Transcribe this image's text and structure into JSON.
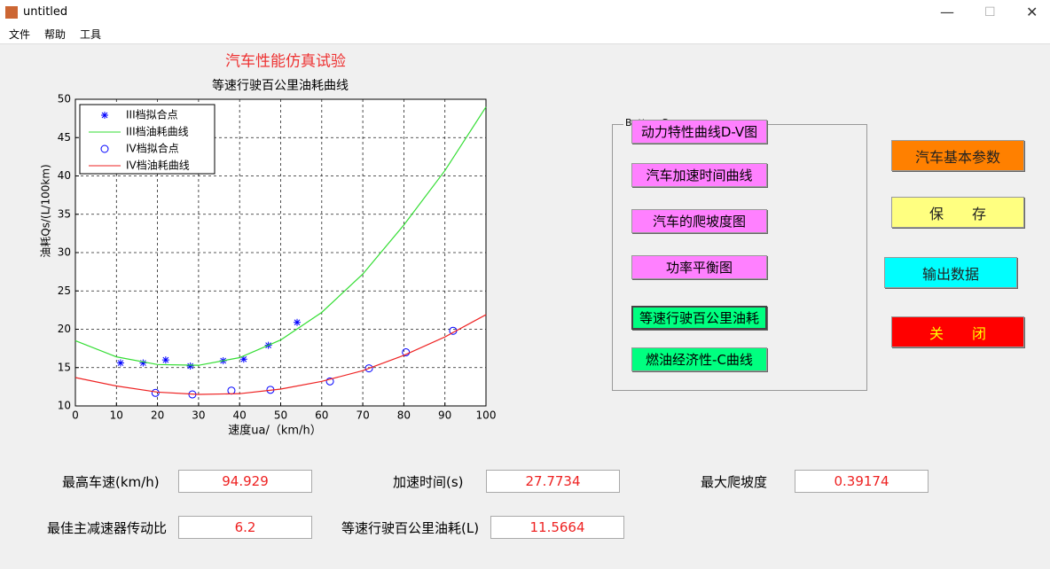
{
  "window": {
    "title": "untitled",
    "menu": [
      "文件",
      "帮助",
      "工具"
    ]
  },
  "heading": "汽车性能仿真试验",
  "chart_data": {
    "type": "line",
    "title": "等速行驶百公里油耗曲线",
    "x_label": "速度ua/（km/h）",
    "y_label": "油耗Qs/(L/100km)",
    "xlim": [
      0,
      100
    ],
    "xticks": [
      0,
      10,
      20,
      30,
      40,
      50,
      60,
      70,
      80,
      90,
      100
    ],
    "ylim": [
      10,
      50
    ],
    "yticks": [
      10,
      15,
      20,
      25,
      30,
      35,
      40,
      45,
      50
    ],
    "grid": true,
    "legend": "upper-left",
    "series": [
      {
        "name": "III档拟合点",
        "color": "#0000ff",
        "marker": "*",
        "x": [
          11,
          16.5,
          22,
          28,
          36,
          41,
          47,
          54
        ],
        "values": [
          15.6,
          15.6,
          16,
          15.2,
          15.9,
          16.1,
          17.9,
          20.9
        ]
      },
      {
        "name": "III档油耗曲线",
        "color": "#33dd33",
        "marker": "none",
        "x": [
          0,
          10,
          20,
          30,
          40,
          50,
          60,
          70,
          80,
          90,
          100
        ],
        "values": [
          18.5,
          16.4,
          15.4,
          15.3,
          16.3,
          18.6,
          22.2,
          27.2,
          33.6,
          40.7,
          49
        ]
      },
      {
        "name": "IV档拟合点",
        "color": "#0000ff",
        "marker": "o",
        "x": [
          19.5,
          28.5,
          38,
          47.5,
          62,
          71.5,
          80.5,
          92
        ],
        "values": [
          11.7,
          11.5,
          12,
          12.1,
          13.2,
          14.9,
          17,
          19.8
        ]
      },
      {
        "name": "IV档油耗曲线",
        "color": "#ee2222",
        "marker": "none",
        "x": [
          0,
          10,
          20,
          30,
          40,
          50,
          60,
          70,
          80,
          90,
          100
        ],
        "values": [
          13.7,
          12.6,
          11.8,
          11.5,
          11.6,
          12.2,
          13.2,
          14.6,
          16.6,
          19,
          21.9
        ]
      }
    ]
  },
  "button_group": {
    "label": "Button Group",
    "buttons": [
      "动力特性曲线D-V图",
      "汽车加速时间曲线",
      "汽车的爬坡度图",
      "功率平衡图",
      "等速行驶百公里油耗",
      "燃油经济性-C曲线"
    ]
  },
  "side_buttons": [
    "汽车基本参数",
    "保存",
    "输出数据",
    "关闭"
  ],
  "fields": [
    {
      "label": "最高车速(km/h)",
      "value": "94.929"
    },
    {
      "label": "加速时间(s)",
      "value": "27.7734"
    },
    {
      "label": "最大爬坡度",
      "value": "0.39174"
    },
    {
      "label": "最佳主减速器传动比",
      "value": "6.2"
    },
    {
      "label": "等速行驶百公里油耗(L)",
      "value": "11.5664"
    }
  ]
}
